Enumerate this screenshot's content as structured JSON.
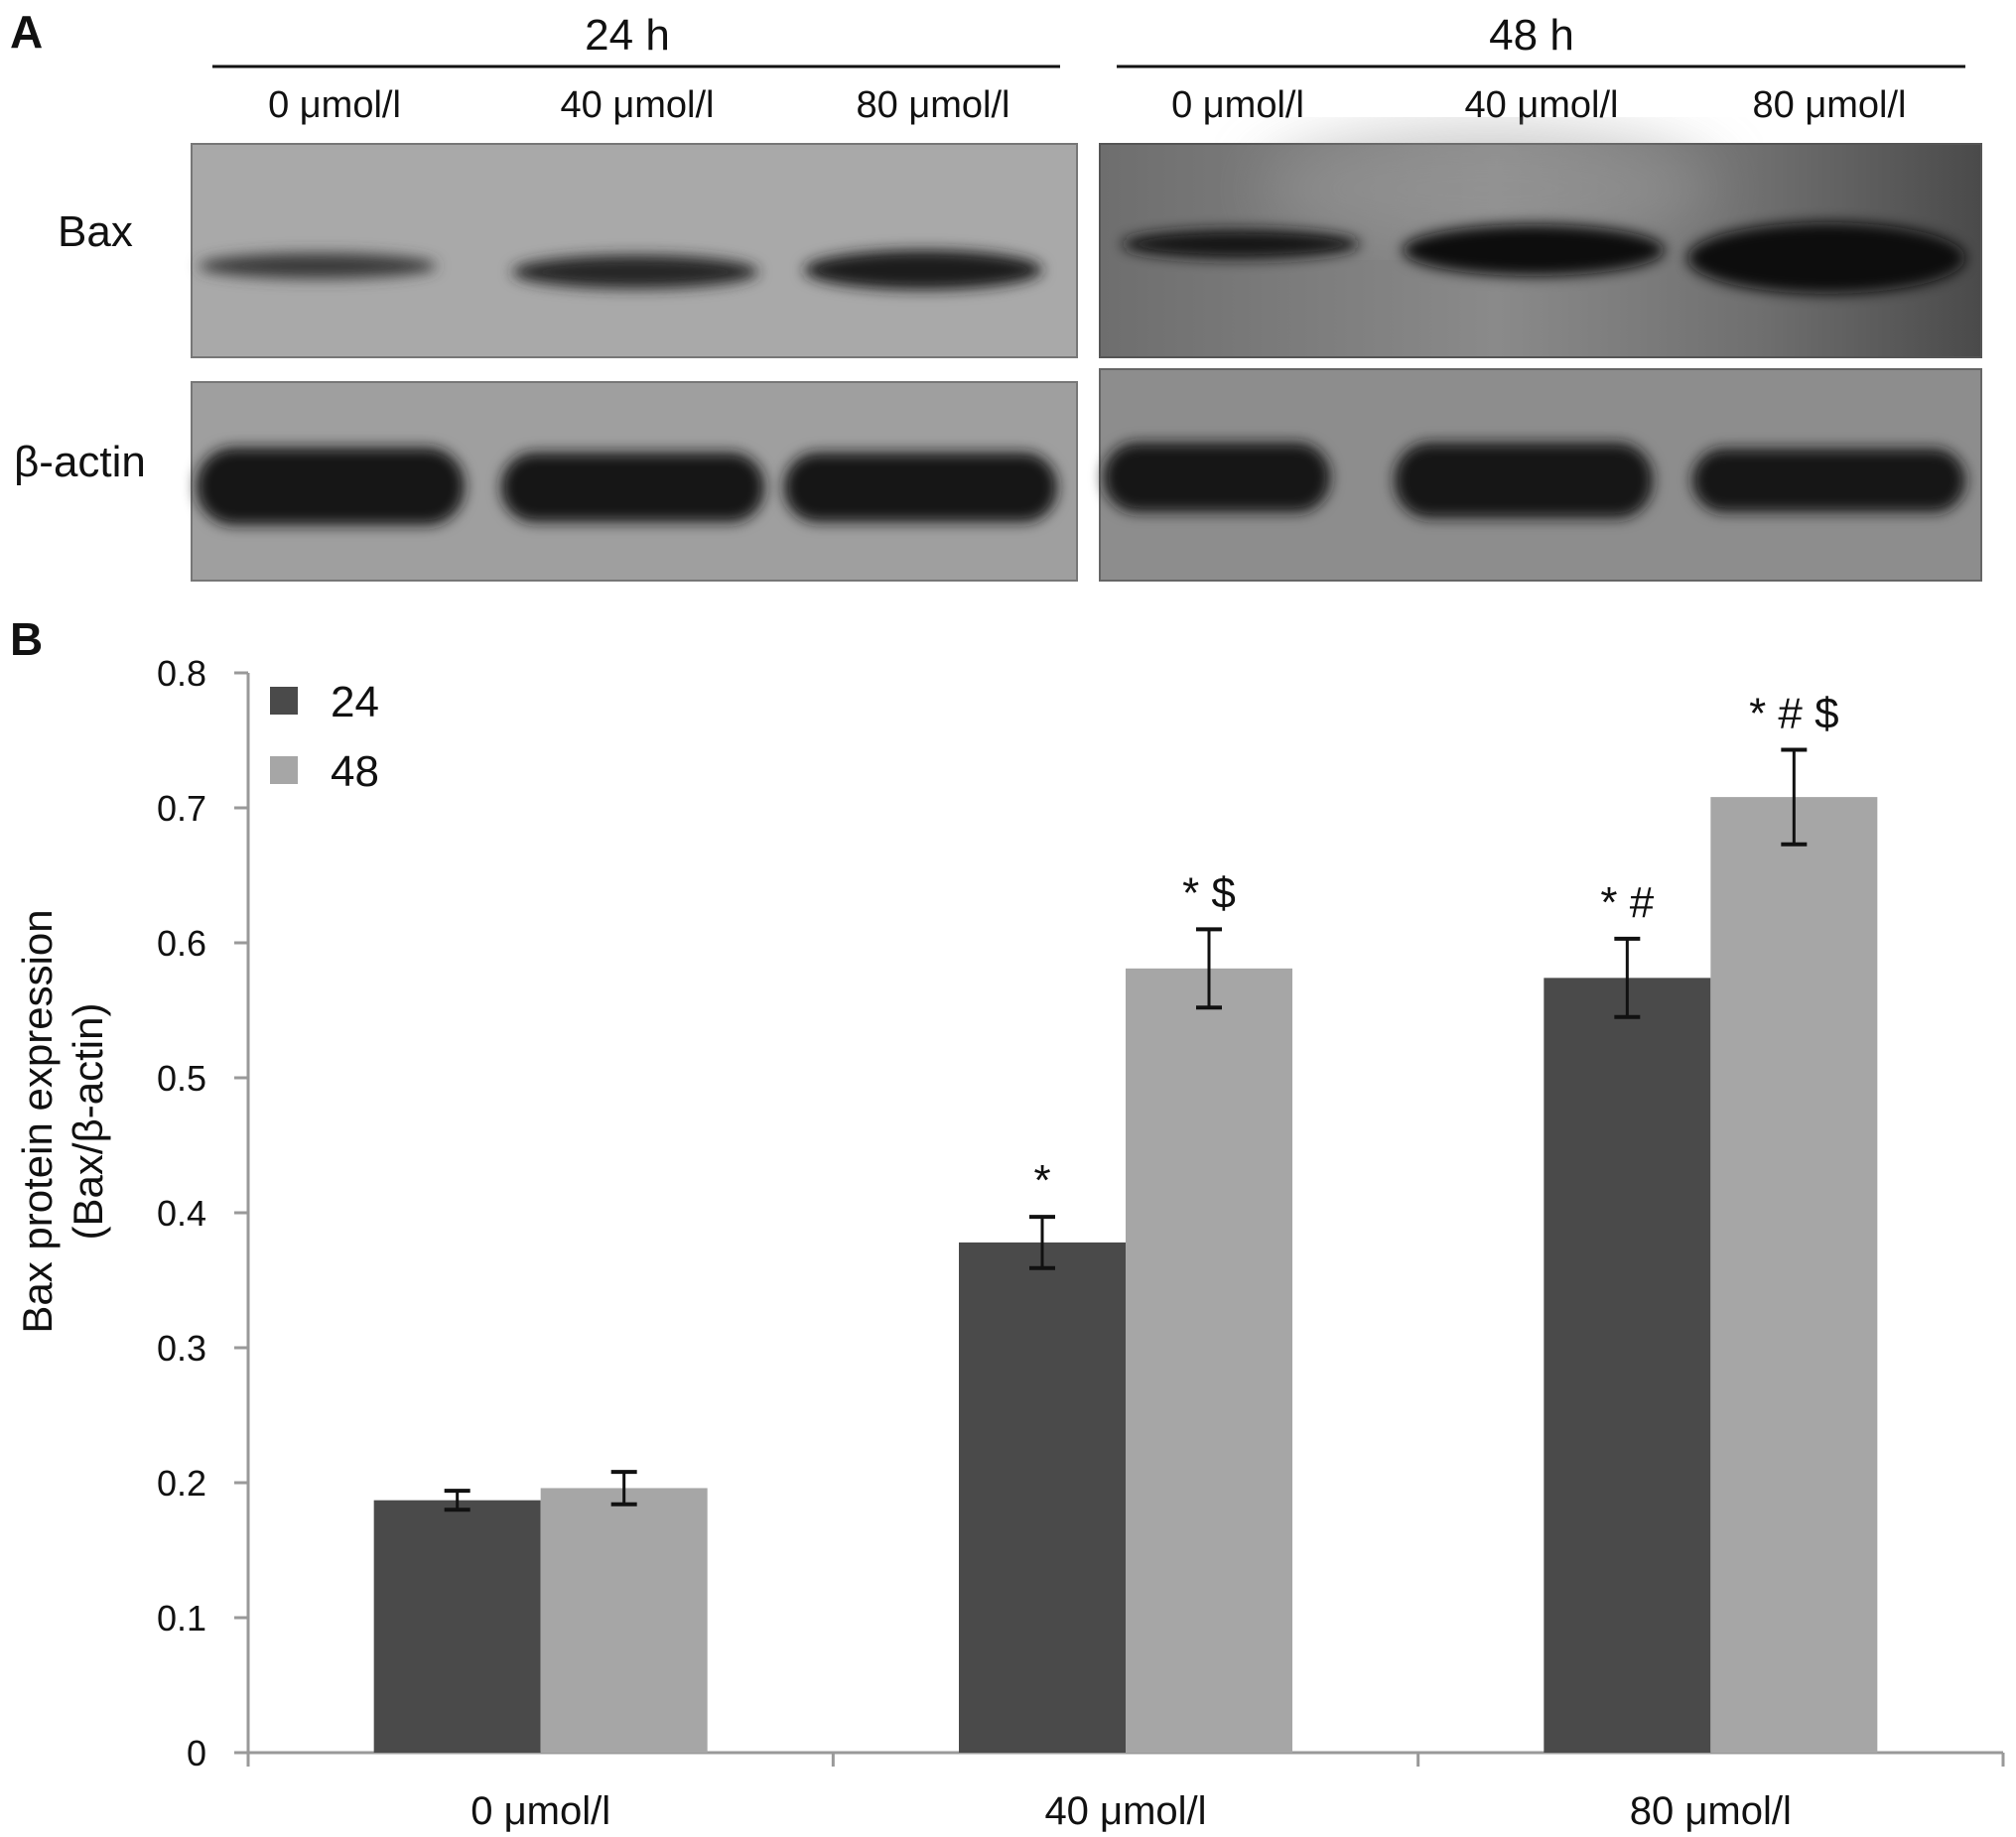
{
  "panel_a": {
    "label": "A",
    "time_groups": [
      {
        "title": "24 h",
        "lanes": [
          "0 μmol/l",
          "40 μmol/l",
          "80 μmol/l"
        ]
      },
      {
        "title": "48 h",
        "lanes": [
          "0 μmol/l",
          "40 μmol/l",
          "80 μmol/l"
        ]
      }
    ],
    "row_labels": [
      "Bax",
      "β-actin"
    ]
  },
  "panel_b": {
    "label": "B"
  },
  "colors": {
    "series_24": "#4a4a4a",
    "series_48": "#a6a6a6",
    "axis": "#999999"
  },
  "chart_data": {
    "type": "bar",
    "categories": [
      "0 μmol/l",
      "40 μmol/l",
      "80 μmol/l"
    ],
    "series": [
      {
        "name": "24",
        "values": [
          0.187,
          0.378,
          0.574
        ],
        "errors": [
          0.007,
          0.019,
          0.029
        ],
        "annotations": [
          "",
          "*",
          "* #"
        ]
      },
      {
        "name": "48",
        "values": [
          0.196,
          0.581,
          0.708
        ],
        "errors": [
          0.012,
          0.029,
          0.035
        ],
        "annotations": [
          "",
          "* $",
          "* # $"
        ]
      }
    ],
    "ylabel": [
      "Bax protein expression",
      "(Bax/β-actin)"
    ],
    "xlabel": "",
    "ylim": [
      0,
      0.8
    ],
    "yticks": [
      "0",
      "0.1",
      "0.2",
      "0.3",
      "0.4",
      "0.5",
      "0.6",
      "0.7",
      "0.8"
    ],
    "legend_position": "top-left",
    "grid": false
  }
}
